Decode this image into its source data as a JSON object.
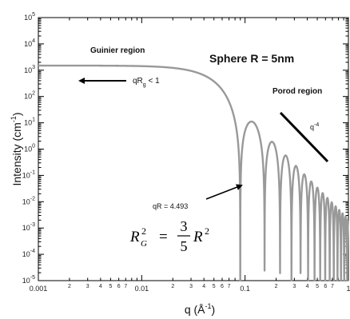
{
  "chart_data": {
    "type": "line",
    "title": "",
    "xlabel": "q (Å",
    "xlabel_sup": "-1",
    "xlabel_close": ")",
    "ylabel": "Intensity (cm",
    "ylabel_sup": "-1",
    "ylabel_close": ")",
    "x_scale": "log",
    "y_scale": "log",
    "xlim": [
      0.001,
      1
    ],
    "ylim": [
      1e-05,
      100000.0
    ],
    "grid": false,
    "x_major_tick_labels": [
      "0.001",
      "0.01",
      "0.1",
      "1"
    ],
    "x_minor_tick_labels": [
      "2",
      "3",
      "4",
      "5",
      "6",
      "7"
    ],
    "y_tick_labels": [
      {
        "base": "10",
        "exp": "-5"
      },
      {
        "base": "10",
        "exp": "-4"
      },
      {
        "base": "10",
        "exp": "-3"
      },
      {
        "base": "10",
        "exp": "-2"
      },
      {
        "base": "10",
        "exp": "-1"
      },
      {
        "base": "10",
        "exp": "0"
      },
      {
        "base": "10",
        "exp": "1"
      },
      {
        "base": "10",
        "exp": "2"
      },
      {
        "base": "10",
        "exp": "3"
      },
      {
        "base": "10",
        "exp": "4"
      },
      {
        "base": "10",
        "exp": "5"
      }
    ],
    "series": [
      {
        "model": "sphere form factor",
        "radius_nm": 5,
        "forward_intensity": 1500,
        "q_range": [
          0.001,
          1
        ],
        "color": "#999999"
      }
    ],
    "annotations": {
      "sphere_label": "Sphere R = 5nm",
      "guinier_label": "Guinier region",
      "guinier_cond_main": "qR",
      "guinier_cond_sub": "g",
      "guinier_cond_end": " < 1",
      "porod_label": "Porod region",
      "porod_slope_base": "q",
      "porod_slope_exp": "-4",
      "first_min_label": "qR = 4.493",
      "formula_lhs_base": "R",
      "formula_lhs_sub": "G",
      "formula_lhs_sup": "2",
      "formula_eq": "=",
      "formula_num": "3",
      "formula_den": "5",
      "formula_rhs_base": "R",
      "formula_rhs_sup": "2"
    }
  }
}
